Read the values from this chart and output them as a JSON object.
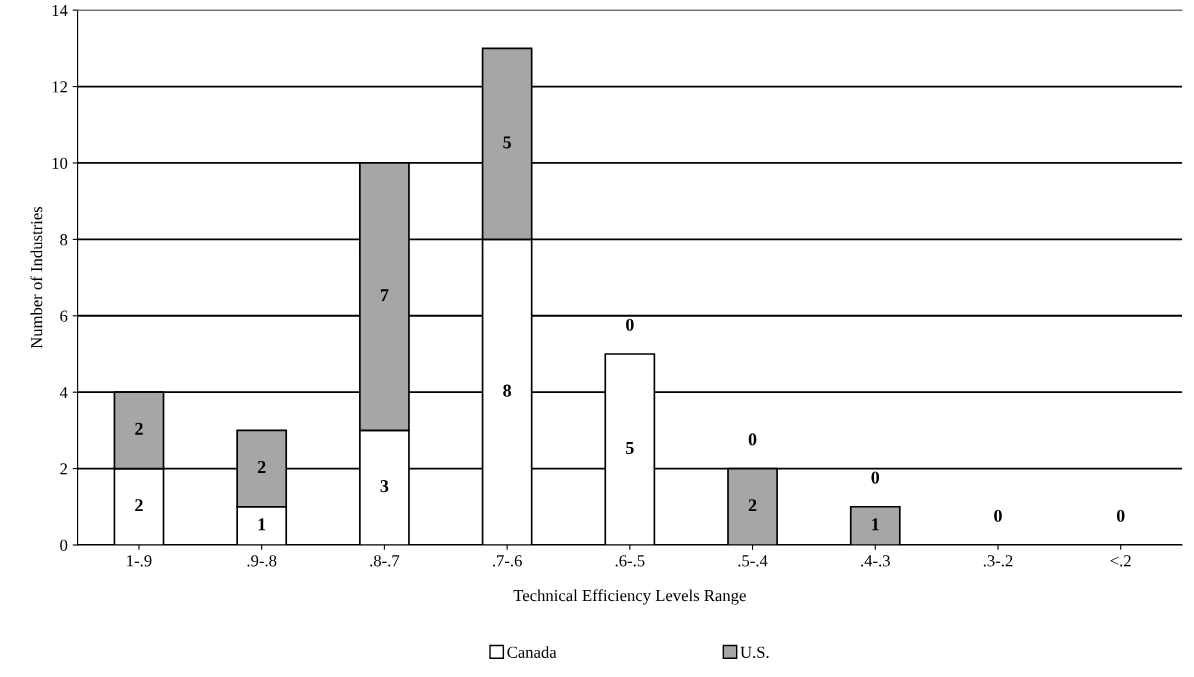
{
  "chart_data": {
    "type": "bar",
    "stacked": true,
    "xlabel": "Technical Efficiency Levels Range",
    "ylabel": "Number of Industries",
    "categories": [
      "1-.9",
      ".9-.8",
      ".8-.7",
      ".7-.6",
      ".6-.5",
      ".5-.4",
      ".4-.3",
      ".3-.2",
      "<.2"
    ],
    "series": [
      {
        "name": "Canada",
        "color": "#ffffff",
        "values": [
          2,
          1,
          3,
          8,
          5,
          0,
          0,
          0,
          0
        ],
        "value_labels": [
          "2",
          "1",
          "3",
          "8",
          "5",
          "0",
          "0",
          "0",
          "0"
        ]
      },
      {
        "name": "U.S.",
        "color": "#a6a6a6",
        "values": [
          2,
          2,
          7,
          5,
          0,
          2,
          1,
          0,
          0
        ],
        "value_labels": [
          "2",
          "2",
          "7",
          "5",
          "0",
          "2",
          "1",
          null,
          null
        ]
      }
    ],
    "ylim": [
      0,
      14
    ],
    "yticks": [
      0,
      2,
      4,
      6,
      8,
      10,
      12,
      14
    ],
    "grid": "y",
    "legend": "bottom"
  }
}
